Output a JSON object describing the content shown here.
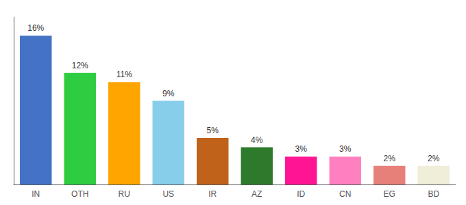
{
  "chart_data": {
    "type": "bar",
    "categories": [
      "IN",
      "OTH",
      "RU",
      "US",
      "IR",
      "AZ",
      "ID",
      "CN",
      "EG",
      "BD"
    ],
    "values": [
      16,
      12,
      11,
      9,
      5,
      4,
      3,
      3,
      2,
      2
    ],
    "value_labels": [
      "16%",
      "12%",
      "11%",
      "9%",
      "5%",
      "4%",
      "3%",
      "3%",
      "2%",
      "2%"
    ],
    "colors": [
      "#4472C4",
      "#2ECC40",
      "#FFA500",
      "#87CEEB",
      "#C0621A",
      "#2D7A2D",
      "#FF1493",
      "#FF80C0",
      "#E8807A",
      "#F0EDD8"
    ],
    "ylim": [
      0,
      18
    ],
    "grid": false,
    "data_labels": true,
    "tick_labels": "x"
  }
}
